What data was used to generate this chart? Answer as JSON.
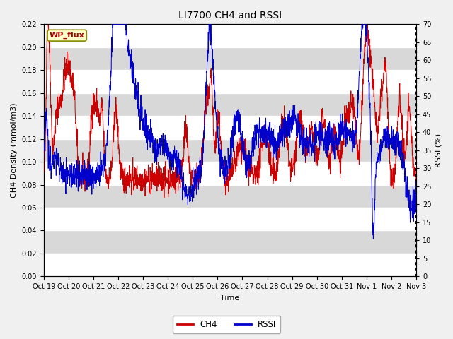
{
  "title": "LI7700 CH4 and RSSI",
  "xlabel": "Time",
  "ylabel_left": "CH4 Density (mmol/m3)",
  "ylabel_right": "RSSI (%)",
  "site_label": "WP_flux",
  "ch4_color": "#cc0000",
  "rssi_color": "#0000cc",
  "ylim_left": [
    0.0,
    0.22
  ],
  "ylim_right": [
    0,
    70
  ],
  "yticks_left": [
    0.0,
    0.02,
    0.04,
    0.06,
    0.08,
    0.1,
    0.12,
    0.14,
    0.16,
    0.18,
    0.2,
    0.22
  ],
  "yticks_right": [
    0,
    5,
    10,
    15,
    20,
    25,
    30,
    35,
    40,
    45,
    50,
    55,
    60,
    65,
    70
  ],
  "xtick_labels": [
    "Oct 19",
    "Oct 20",
    "Oct 21",
    "Oct 22",
    "Oct 23",
    "Oct 24",
    "Oct 25",
    "Oct 26",
    "Oct 27",
    "Oct 28",
    "Oct 29",
    "Oct 30",
    "Oct 31",
    "Nov 1",
    "Nov 2",
    "Nov 3"
  ],
  "bg_color": "#d8d8d8",
  "band_color": "#e8e8e8",
  "grid_color": "#ffffff",
  "legend_ch4": "CH4",
  "legend_rssi": "RSSI",
  "fig_width": 6.4,
  "fig_height": 4.8,
  "dpi": 100
}
